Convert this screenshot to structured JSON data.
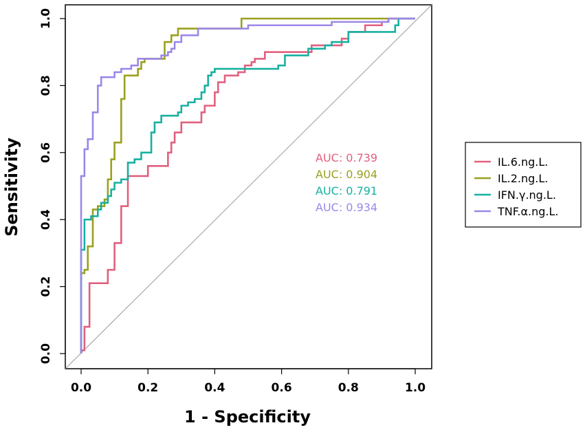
{
  "chart_data": {
    "type": "line",
    "title": "",
    "xlabel": "1 - Specificity",
    "ylabel": "Sensitivity",
    "xlim": [
      0,
      1
    ],
    "ylim": [
      0,
      1
    ],
    "xticks": [
      "0.0",
      "0.2",
      "0.4",
      "0.6",
      "0.8",
      "1.0"
    ],
    "yticks": [
      "0.0",
      "0.2",
      "0.4",
      "0.6",
      "0.8",
      "1.0"
    ],
    "grid": false,
    "legend_position": "right",
    "reference_line": "diagonal",
    "series": [
      {
        "name": "IL.6.ng.L.",
        "auc_label": "AUC: 0.739",
        "color": "#E0607E",
        "points": [
          [
            0,
            0
          ],
          [
            0,
            0.01
          ],
          [
            0.01,
            0.08
          ],
          [
            0.025,
            0.21
          ],
          [
            0.08,
            0.25
          ],
          [
            0.1,
            0.33
          ],
          [
            0.12,
            0.44
          ],
          [
            0.14,
            0.53
          ],
          [
            0.2,
            0.56
          ],
          [
            0.26,
            0.6
          ],
          [
            0.27,
            0.63
          ],
          [
            0.28,
            0.66
          ],
          [
            0.3,
            0.69
          ],
          [
            0.36,
            0.72
          ],
          [
            0.37,
            0.74
          ],
          [
            0.4,
            0.78
          ],
          [
            0.41,
            0.81
          ],
          [
            0.43,
            0.83
          ],
          [
            0.47,
            0.84
          ],
          [
            0.49,
            0.86
          ],
          [
            0.51,
            0.87
          ],
          [
            0.52,
            0.88
          ],
          [
            0.55,
            0.9
          ],
          [
            0.68,
            0.9
          ],
          [
            0.69,
            0.92
          ],
          [
            0.78,
            0.94
          ],
          [
            0.8,
            0.96
          ],
          [
            0.85,
            0.98
          ],
          [
            0.9,
            0.99
          ],
          [
            0.92,
            1
          ],
          [
            1,
            1
          ]
        ]
      },
      {
        "name": "IL.2.ng.L.",
        "auc_label": "AUC: 0.904",
        "color": "#9AA01E",
        "points": [
          [
            0,
            0
          ],
          [
            0,
            0.24
          ],
          [
            0.01,
            0.25
          ],
          [
            0.02,
            0.32
          ],
          [
            0.035,
            0.43
          ],
          [
            0.05,
            0.44
          ],
          [
            0.07,
            0.46
          ],
          [
            0.08,
            0.52
          ],
          [
            0.09,
            0.58
          ],
          [
            0.1,
            0.63
          ],
          [
            0.12,
            0.76
          ],
          [
            0.13,
            0.83
          ],
          [
            0.17,
            0.85
          ],
          [
            0.18,
            0.87
          ],
          [
            0.19,
            0.88
          ],
          [
            0.25,
            0.93
          ],
          [
            0.27,
            0.95
          ],
          [
            0.29,
            0.97
          ],
          [
            0.48,
            1
          ],
          [
            1,
            1
          ]
        ]
      },
      {
        "name": "IFN.γ.ng.L.",
        "auc_label": "AUC: 0.791",
        "color": "#17B0A0",
        "points": [
          [
            0,
            0
          ],
          [
            0,
            0.31
          ],
          [
            0.01,
            0.4
          ],
          [
            0.03,
            0.41
          ],
          [
            0.05,
            0.43
          ],
          [
            0.06,
            0.45
          ],
          [
            0.08,
            0.47
          ],
          [
            0.09,
            0.49
          ],
          [
            0.1,
            0.51
          ],
          [
            0.12,
            0.52
          ],
          [
            0.14,
            0.57
          ],
          [
            0.16,
            0.58
          ],
          [
            0.18,
            0.6
          ],
          [
            0.21,
            0.66
          ],
          [
            0.22,
            0.69
          ],
          [
            0.24,
            0.71
          ],
          [
            0.29,
            0.72
          ],
          [
            0.3,
            0.74
          ],
          [
            0.32,
            0.75
          ],
          [
            0.34,
            0.76
          ],
          [
            0.36,
            0.78
          ],
          [
            0.37,
            0.8
          ],
          [
            0.38,
            0.83
          ],
          [
            0.39,
            0.84
          ],
          [
            0.4,
            0.85
          ],
          [
            0.59,
            0.86
          ],
          [
            0.61,
            0.89
          ],
          [
            0.67,
            0.89
          ],
          [
            0.68,
            0.91
          ],
          [
            0.73,
            0.92
          ],
          [
            0.75,
            0.93
          ],
          [
            0.8,
            0.96
          ],
          [
            0.94,
            0.98
          ],
          [
            0.95,
            1
          ],
          [
            1,
            1
          ]
        ]
      },
      {
        "name": "TNF.α.ng.L.",
        "auc_label": "AUC: 0.934",
        "color": "#9C87E8",
        "points": [
          [
            0,
            0
          ],
          [
            0,
            0.53
          ],
          [
            0.01,
            0.61
          ],
          [
            0.02,
            0.64
          ],
          [
            0.035,
            0.72
          ],
          [
            0.05,
            0.8
          ],
          [
            0.06,
            0.825
          ],
          [
            0.1,
            0.84
          ],
          [
            0.12,
            0.85
          ],
          [
            0.15,
            0.86
          ],
          [
            0.17,
            0.88
          ],
          [
            0.24,
            0.89
          ],
          [
            0.26,
            0.9
          ],
          [
            0.27,
            0.91
          ],
          [
            0.28,
            0.93
          ],
          [
            0.3,
            0.95
          ],
          [
            0.35,
            0.97
          ],
          [
            0.5,
            0.98
          ],
          [
            0.75,
            0.99
          ],
          [
            0.92,
            1
          ],
          [
            1,
            1
          ]
        ]
      }
    ]
  }
}
